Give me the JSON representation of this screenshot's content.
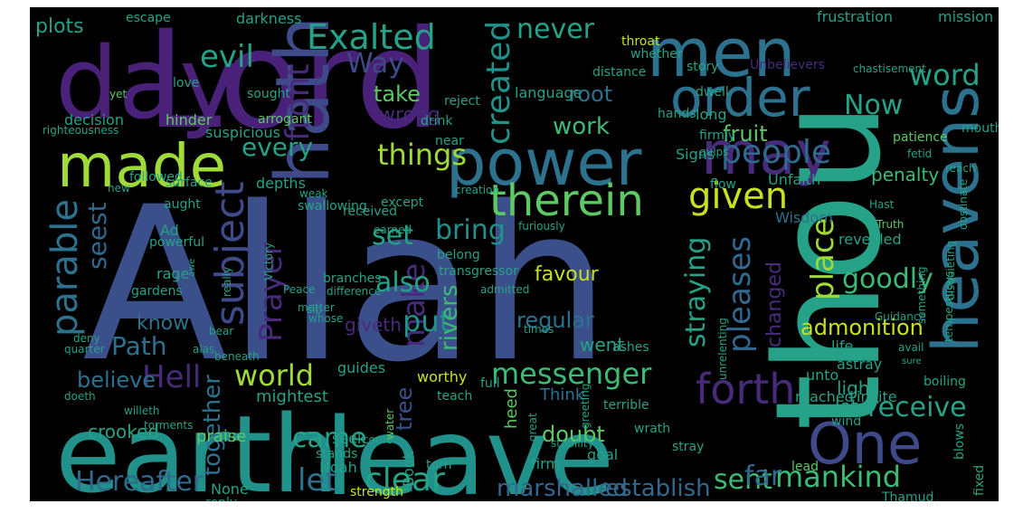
{
  "palette": {
    "purple": "#4a2178",
    "violet": "#472a7a",
    "indigo": "#3b4f8a",
    "slate": "#3e4a89",
    "blue": "#31688e",
    "steel": "#2c728e",
    "teal": "#21918c",
    "sea": "#25a287",
    "green": "#3bbb75",
    "lime": "#5ec962",
    "yellowgreen": "#a0da39",
    "yellow": "#c8e020"
  },
  "words": [
    {
      "text": "Allah",
      "color": "indigo"
    },
    {
      "text": "Lord",
      "color": "purple"
    },
    {
      "text": "earth",
      "color": "teal"
    },
    {
      "text": "leave",
      "color": "teal"
    },
    {
      "text": "thou",
      "color": "sea"
    },
    {
      "text": "day",
      "color": "purple"
    },
    {
      "text": "power",
      "color": "steel"
    },
    {
      "text": "hath",
      "color": "slate"
    },
    {
      "text": "men",
      "color": "steel"
    },
    {
      "text": "order",
      "color": "steel"
    },
    {
      "text": "heavens",
      "color": "steel"
    },
    {
      "text": "may",
      "color": "violet"
    },
    {
      "text": "made",
      "color": "yellowgreen"
    },
    {
      "text": "therein",
      "color": "lime"
    },
    {
      "text": "One",
      "color": "slate"
    },
    {
      "text": "given",
      "color": "yellow"
    },
    {
      "text": "forth",
      "color": "violet"
    },
    {
      "text": "people",
      "color": "blue"
    },
    {
      "text": "Exalted",
      "color": "sea"
    },
    {
      "text": "never",
      "color": "sea"
    },
    {
      "text": "messenger",
      "color": "green"
    },
    {
      "text": "subject",
      "color": "slate"
    },
    {
      "text": "parable",
      "color": "steel"
    },
    {
      "text": "Hell",
      "color": "violet"
    },
    {
      "text": "world",
      "color": "yellowgreen"
    },
    {
      "text": "word",
      "color": "sea"
    },
    {
      "text": "Now",
      "color": "sea"
    },
    {
      "text": "things",
      "color": "yellowgreen"
    },
    {
      "text": "every",
      "color": "sea"
    },
    {
      "text": "created",
      "color": "teal"
    },
    {
      "text": "Prayer",
      "color": "violet"
    },
    {
      "text": "clear",
      "color": "sea"
    },
    {
      "text": "Hereafter",
      "color": "blue"
    },
    {
      "text": "mankind",
      "color": "green"
    },
    {
      "text": "sent",
      "color": "green"
    },
    {
      "text": "receive",
      "color": "sea"
    },
    {
      "text": "goodly",
      "color": "green"
    },
    {
      "text": "place",
      "color": "yellowgreen"
    },
    {
      "text": "pleases",
      "color": "blue"
    },
    {
      "text": "straying",
      "color": "sea"
    },
    {
      "text": "admonition",
      "color": "yellow"
    },
    {
      "text": "make",
      "color": "violet"
    },
    {
      "text": "bring",
      "color": "teal"
    },
    {
      "text": "set",
      "color": "sea"
    },
    {
      "text": "also",
      "color": "sea"
    },
    {
      "text": "put",
      "color": "teal"
    },
    {
      "text": "rivers",
      "color": "green"
    },
    {
      "text": "let",
      "color": "steel"
    },
    {
      "text": "came",
      "color": "sea"
    },
    {
      "text": "far",
      "color": "blue"
    },
    {
      "text": "establish",
      "color": "blue"
    },
    {
      "text": "marshalled",
      "color": "blue"
    },
    {
      "text": "evil",
      "color": "sea"
    },
    {
      "text": "Way",
      "color": "slate"
    },
    {
      "text": "front",
      "color": "violet"
    },
    {
      "text": "root",
      "color": "steel"
    },
    {
      "text": "work",
      "color": "green"
    },
    {
      "text": "fruit",
      "color": "lime"
    },
    {
      "text": "take",
      "color": "lime"
    },
    {
      "text": "wrong",
      "color": "violet"
    },
    {
      "text": "seest",
      "color": "blue"
    },
    {
      "text": "Path",
      "color": "steel"
    },
    {
      "text": "believe",
      "color": "steel"
    },
    {
      "text": "together",
      "color": "steel"
    },
    {
      "text": "favour",
      "color": "yellow"
    },
    {
      "text": "regular",
      "color": "steel"
    },
    {
      "text": "giveth",
      "color": "violet"
    },
    {
      "text": "went",
      "color": "sea"
    },
    {
      "text": "changed",
      "color": "violet"
    },
    {
      "text": "know",
      "color": "steel"
    },
    {
      "text": "tree",
      "color": "indigo"
    },
    {
      "text": "plots",
      "color": "sea"
    },
    {
      "text": "darkness",
      "color": "sea"
    },
    {
      "text": "frustration",
      "color": "sea"
    },
    {
      "text": "mission",
      "color": "sea"
    },
    {
      "text": "escape",
      "color": "sea"
    },
    {
      "text": "distance",
      "color": "sea"
    },
    {
      "text": "story",
      "color": "sea"
    },
    {
      "text": "Unbelievers",
      "color": "violet"
    },
    {
      "text": "language",
      "color": "sea"
    },
    {
      "text": "long",
      "color": "sea"
    },
    {
      "text": "decision",
      "color": "sea"
    },
    {
      "text": "hinder",
      "color": "lime"
    },
    {
      "text": "arrogant",
      "color": "lime"
    },
    {
      "text": "penalty",
      "color": "green"
    },
    {
      "text": "Signs",
      "color": "sea"
    },
    {
      "text": "depths",
      "color": "sea"
    },
    {
      "text": "Unfaith",
      "color": "sea"
    },
    {
      "text": "Wisdom",
      "color": "steel"
    },
    {
      "text": "revealed",
      "color": "sea"
    },
    {
      "text": "guides",
      "color": "sea"
    },
    {
      "text": "worthy",
      "color": "yellow"
    },
    {
      "text": "Think",
      "color": "steel"
    },
    {
      "text": "heed",
      "color": "lime"
    },
    {
      "text": "light",
      "color": "sea"
    },
    {
      "text": "lot",
      "color": "sea"
    },
    {
      "text": "reached",
      "color": "sea"
    },
    {
      "text": "invite",
      "color": "sea"
    },
    {
      "text": "doubt",
      "color": "lime"
    },
    {
      "text": "crooked",
      "color": "sea"
    },
    {
      "text": "mightest",
      "color": "sea"
    },
    {
      "text": "praise",
      "color": "lime"
    },
    {
      "text": "seek",
      "color": "sea"
    },
    {
      "text": "terrible",
      "color": "sea"
    },
    {
      "text": "life",
      "color": "sea"
    },
    {
      "text": "astray",
      "color": "sea"
    },
    {
      "text": "unto",
      "color": "sea"
    },
    {
      "text": "Book",
      "color": "sea"
    },
    {
      "text": "torn",
      "color": "sea"
    },
    {
      "text": "firm",
      "color": "sea"
    },
    {
      "text": "goal",
      "color": "sea"
    },
    {
      "text": "wrath",
      "color": "sea"
    },
    {
      "text": "stray",
      "color": "sea"
    },
    {
      "text": "wind",
      "color": "sea"
    },
    {
      "text": "lead",
      "color": "lime"
    },
    {
      "text": "None",
      "color": "sea"
    },
    {
      "text": "Noah",
      "color": "sea"
    },
    {
      "text": "stands",
      "color": "sea"
    },
    {
      "text": "strength",
      "color": "yellow"
    },
    {
      "text": "reply",
      "color": "sea"
    },
    {
      "text": "Thamud",
      "color": "sea"
    },
    {
      "text": "remove",
      "color": "sea"
    },
    {
      "text": "death",
      "color": "sea"
    },
    {
      "text": "fixed",
      "color": "sea"
    },
    {
      "text": "blows",
      "color": "sea"
    },
    {
      "text": "boiling",
      "color": "sea"
    },
    {
      "text": "tempestuous",
      "color": "sea"
    },
    {
      "text": "Guidance",
      "color": "sea"
    },
    {
      "text": "obstinate",
      "color": "sea"
    },
    {
      "text": "disquieting",
      "color": "sea"
    },
    {
      "text": "something",
      "color": "sea"
    },
    {
      "text": "Truth",
      "color": "lime"
    },
    {
      "text": "Hast",
      "color": "sea"
    },
    {
      "text": "reach",
      "color": "sea"
    },
    {
      "text": "patience",
      "color": "lime"
    },
    {
      "text": "fetid",
      "color": "sea"
    },
    {
      "text": "mouths",
      "color": "sea"
    },
    {
      "text": "gulps",
      "color": "sea"
    },
    {
      "text": "firmly",
      "color": "sea"
    },
    {
      "text": "dwell",
      "color": "sea"
    },
    {
      "text": "hands",
      "color": "sea"
    },
    {
      "text": "chastisement",
      "color": "sea"
    },
    {
      "text": "throat",
      "color": "yellow"
    },
    {
      "text": "whether",
      "color": "sea"
    },
    {
      "text": "reject",
      "color": "sea"
    },
    {
      "text": "drink",
      "color": "sea"
    },
    {
      "text": "near",
      "color": "sea"
    },
    {
      "text": "sought",
      "color": "sea"
    },
    {
      "text": "suspicious",
      "color": "sea"
    },
    {
      "text": "yet",
      "color": "lime"
    },
    {
      "text": "love",
      "color": "sea"
    },
    {
      "text": "righteousness",
      "color": "sea"
    },
    {
      "text": "followed",
      "color": "sea"
    },
    {
      "text": "new",
      "color": "sea"
    },
    {
      "text": "surface",
      "color": "sea"
    },
    {
      "text": "aught",
      "color": "sea"
    },
    {
      "text": "Ad",
      "color": "sea"
    },
    {
      "text": "powerful",
      "color": "sea"
    },
    {
      "text": "rage",
      "color": "sea"
    },
    {
      "text": "gardens",
      "color": "sea"
    },
    {
      "text": "weak",
      "color": "sea"
    },
    {
      "text": "swallowing",
      "color": "sea"
    },
    {
      "text": "received",
      "color": "sea"
    },
    {
      "text": "earned",
      "color": "sea"
    },
    {
      "text": "except",
      "color": "sea"
    },
    {
      "text": "creation",
      "color": "sea"
    },
    {
      "text": "furiously",
      "color": "sea"
    },
    {
      "text": "branches",
      "color": "sea"
    },
    {
      "text": "difference",
      "color": "sea"
    },
    {
      "text": "belong",
      "color": "sea"
    },
    {
      "text": "transgressor",
      "color": "sea"
    },
    {
      "text": "admitted",
      "color": "sea"
    },
    {
      "text": "Victory",
      "color": "sea"
    },
    {
      "text": "Peace",
      "color": "sea"
    },
    {
      "text": "sip",
      "color": "sea"
    },
    {
      "text": "matter",
      "color": "sea"
    },
    {
      "text": "whose",
      "color": "sea"
    },
    {
      "text": "really",
      "color": "sea"
    },
    {
      "text": "bear",
      "color": "sea"
    },
    {
      "text": "alas",
      "color": "sea"
    },
    {
      "text": "beneath",
      "color": "sea"
    },
    {
      "text": "teach",
      "color": "sea"
    },
    {
      "text": "full",
      "color": "sea"
    },
    {
      "text": "times",
      "color": "sea"
    },
    {
      "text": "ashes",
      "color": "sea"
    },
    {
      "text": "greeting",
      "color": "sea"
    },
    {
      "text": "unrelenting",
      "color": "sea"
    },
    {
      "text": "avail",
      "color": "sea"
    },
    {
      "text": "sure",
      "color": "sea"
    },
    {
      "text": "deny",
      "color": "sea"
    },
    {
      "text": "quarter",
      "color": "sea"
    },
    {
      "text": "doeth",
      "color": "sea"
    },
    {
      "text": "willeth",
      "color": "sea"
    },
    {
      "text": "torments",
      "color": "sea"
    },
    {
      "text": "come",
      "color": "sea"
    },
    {
      "text": "water",
      "color": "lime"
    },
    {
      "text": "great",
      "color": "sea"
    },
    {
      "text": "stability",
      "color": "sea"
    },
    {
      "text": "flow",
      "color": "sea"
    },
    {
      "text": "awe",
      "color": "sea"
    }
  ]
}
